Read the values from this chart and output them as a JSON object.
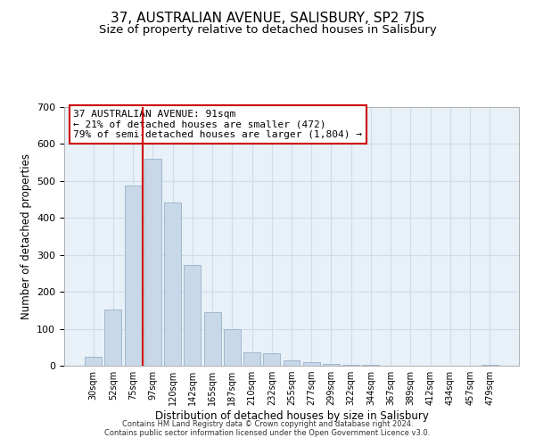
{
  "title": "37, AUSTRALIAN AVENUE, SALISBURY, SP2 7JS",
  "subtitle": "Size of property relative to detached houses in Salisbury",
  "xlabel": "Distribution of detached houses by size in Salisbury",
  "ylabel": "Number of detached properties",
  "bar_labels": [
    "30sqm",
    "52sqm",
    "75sqm",
    "97sqm",
    "120sqm",
    "142sqm",
    "165sqm",
    "187sqm",
    "210sqm",
    "232sqm",
    "255sqm",
    "277sqm",
    "299sqm",
    "322sqm",
    "344sqm",
    "367sqm",
    "389sqm",
    "412sqm",
    "434sqm",
    "457sqm",
    "479sqm"
  ],
  "bar_values": [
    25,
    152,
    487,
    559,
    442,
    273,
    146,
    98,
    37,
    35,
    14,
    10,
    5,
    3,
    2,
    1,
    0,
    0,
    0,
    0,
    2
  ],
  "bar_color": "#c8d8e8",
  "bar_edge_color": "#a0b8cc",
  "vline_color": "#cc0000",
  "annotation_title": "37 AUSTRALIAN AVENUE: 91sqm",
  "annotation_line1": "← 21% of detached houses are smaller (472)",
  "annotation_line2": "79% of semi-detached houses are larger (1,804) →",
  "annotation_box_color": "#ffffff",
  "annotation_box_edge": "#cc0000",
  "ylim": [
    0,
    700
  ],
  "yticks": [
    0,
    100,
    200,
    300,
    400,
    500,
    600,
    700
  ],
  "footer1": "Contains HM Land Registry data © Crown copyright and database right 2024.",
  "footer2": "Contains public sector information licensed under the Open Government Licence v3.0.",
  "fig_bg": "#ffffff",
  "ax_bg": "#e8f0f8",
  "grid_color": "#d0dce8",
  "title_fontsize": 11,
  "subtitle_fontsize": 9.5
}
